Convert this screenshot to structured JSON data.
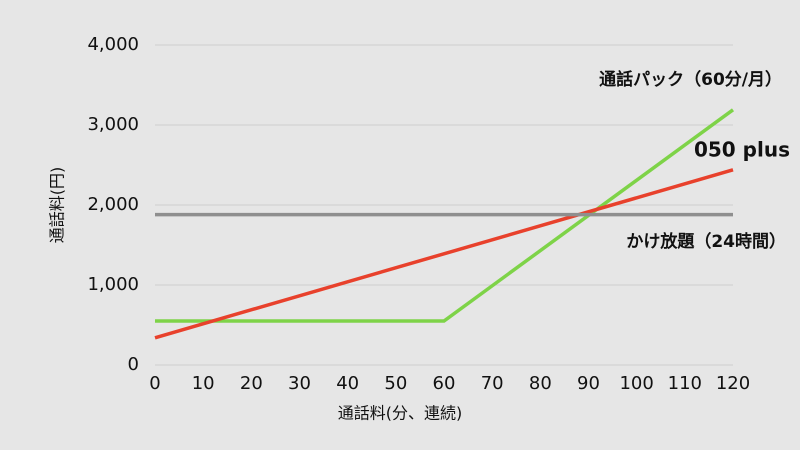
{
  "chart_data": {
    "type": "line",
    "xlabel": "通話料(分、連続)",
    "ylabel": "通話料(円)",
    "xlim": [
      0,
      120
    ],
    "xticks": [
      0,
      10,
      20,
      30,
      40,
      50,
      60,
      70,
      80,
      90,
      100,
      110,
      120
    ],
    "ylim": [
      0,
      4000
    ],
    "yticks": [
      0,
      {
        "value": 1000,
        "label": "1,000"
      },
      {
        "value": 2000,
        "label": "2,000"
      },
      {
        "value": 3000,
        "label": "3,000"
      },
      {
        "value": 4000,
        "label": "4,000"
      }
    ],
    "grid": true,
    "series": [
      {
        "name": "通話パック（60分/月）",
        "color": "#7ed348",
        "x": [
          0,
          60,
          120
        ],
        "values": [
          550,
          550,
          3190
        ]
      },
      {
        "name": "050 plus",
        "color": "#e8412c",
        "x": [
          0,
          120
        ],
        "values": [
          340,
          2440
        ]
      },
      {
        "name": "かけ放題（24時間）",
        "color": "#8f8f8f",
        "x": [
          0,
          120
        ],
        "values": [
          1880,
          1880
        ]
      }
    ]
  }
}
